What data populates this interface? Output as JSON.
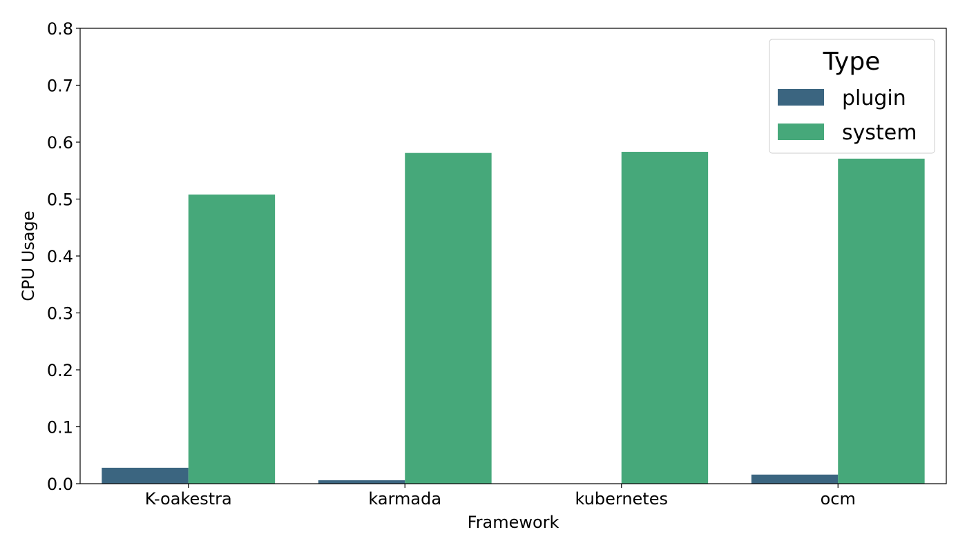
{
  "chart_data": {
    "type": "bar",
    "categories": [
      "K-oakestra",
      "karmada",
      "kubernetes",
      "ocm"
    ],
    "series": [
      {
        "name": "plugin",
        "color": "#3b6580",
        "values": [
          0.028,
          0.006,
          0.0,
          0.016
        ]
      },
      {
        "name": "system",
        "color": "#46a87a",
        "values": [
          0.508,
          0.581,
          0.583,
          0.571
        ]
      }
    ],
    "xlabel": "Framework",
    "ylabel": "CPU Usage",
    "ylim": [
      0,
      0.8
    ],
    "yticks": [
      "0.0",
      "0.1",
      "0.2",
      "0.3",
      "0.4",
      "0.5",
      "0.6",
      "0.7",
      "0.8"
    ],
    "legend": {
      "title": "Type",
      "placement": "top-right"
    },
    "grid": false
  }
}
